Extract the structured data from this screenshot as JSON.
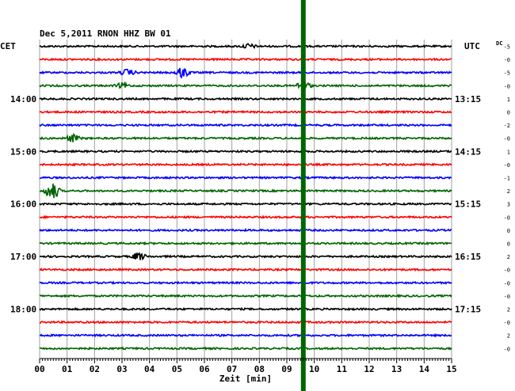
{
  "chart_data": {
    "type": "line",
    "title": "Dec 5,2011   RNON HHZ BW 01",
    "xlabel": "Zeit [min]",
    "left_timezone": "CET",
    "right_timezone": "UTC",
    "dc_header": "DC",
    "grid": true,
    "xlim": [
      0,
      15
    ],
    "x_ticks": [
      "00",
      "01",
      "02",
      "03",
      "04",
      "05",
      "06",
      "07",
      "08",
      "09",
      "10",
      "11",
      "12",
      "13",
      "14",
      "15"
    ],
    "left_hour_labels": [
      {
        "label": "14:00",
        "row": 4
      },
      {
        "label": "15:00",
        "row": 8
      },
      {
        "label": "16:00",
        "row": 12
      },
      {
        "label": "17:00",
        "row": 16
      },
      {
        "label": "18:00",
        "row": 20
      }
    ],
    "right_hour_labels": [
      {
        "label": "13:15",
        "row": 4
      },
      {
        "label": "14:15",
        "row": 8
      },
      {
        "label": "15:15",
        "row": 12
      },
      {
        "label": "16:15",
        "row": 16
      },
      {
        "label": "17:15",
        "row": 20
      }
    ],
    "dc_offsets": [
      "-5",
      "-0",
      "-5",
      "-0",
      "1",
      "0",
      "-2",
      "-0",
      "1",
      "-0",
      "-1",
      "2",
      "3",
      "-0",
      "0",
      "0",
      "2",
      "-0",
      "-0",
      "-0",
      "2",
      "-0",
      "2",
      "-0"
    ],
    "trace_colors": [
      "#000000",
      "#ff0000",
      "#0000ff",
      "#006400"
    ],
    "trace_count": 24,
    "marker": {
      "minute": 9.6,
      "color": "#006400"
    },
    "events": [
      {
        "row": 0,
        "minute": 7.6,
        "amplitude": 3
      },
      {
        "row": 2,
        "minute": 3.2,
        "amplitude": 4
      },
      {
        "row": 2,
        "minute": 5.2,
        "amplitude": 7
      },
      {
        "row": 3,
        "minute": 3.0,
        "amplitude": 3
      },
      {
        "row": 7,
        "minute": 1.2,
        "amplitude": 5
      },
      {
        "row": 11,
        "minute": 0.45,
        "amplitude": 12
      },
      {
        "row": 16,
        "minute": 3.6,
        "amplitude": 5
      },
      {
        "row": 3,
        "minute": 9.6,
        "amplitude": 6
      }
    ]
  }
}
